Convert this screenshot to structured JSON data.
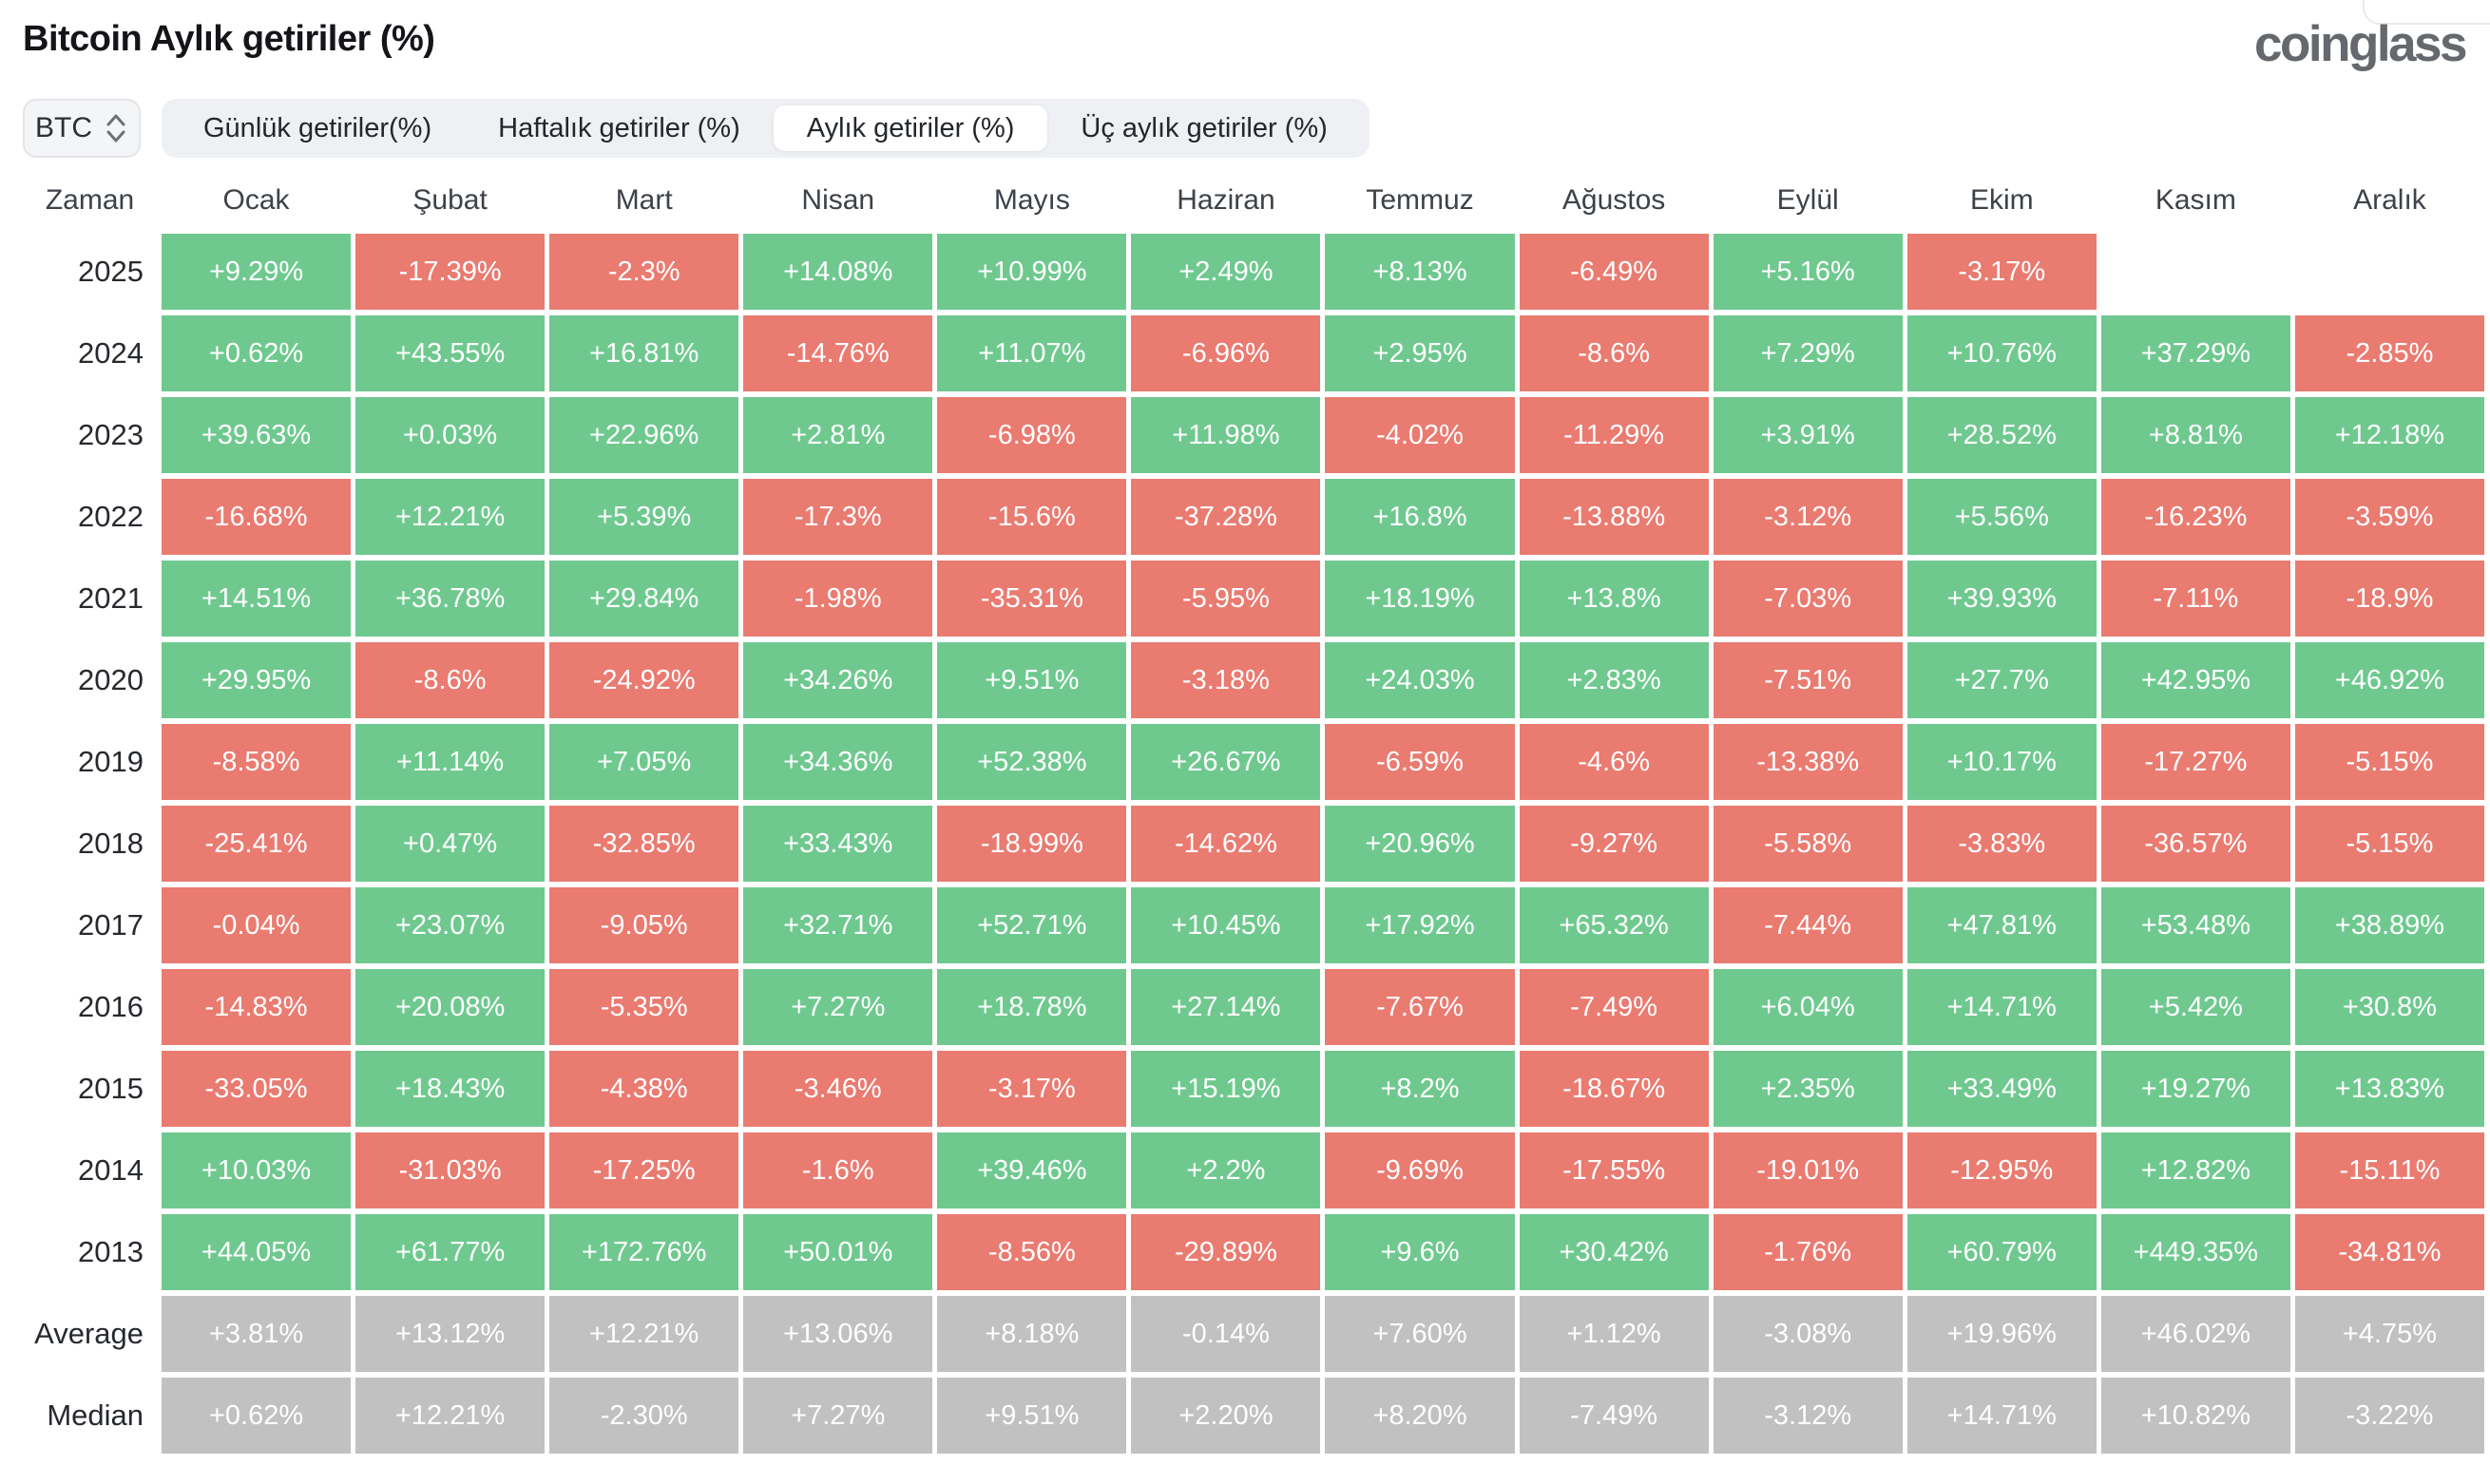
{
  "header": {
    "title": "Bitcoin Aylık getiriler (%)",
    "logo": "coinglass"
  },
  "toolbar": {
    "symbol_selector": {
      "label": "BTC"
    },
    "tabs": [
      {
        "label": "Günlük getiriler(%)",
        "active": false
      },
      {
        "label": "Haftalık getiriler (%)",
        "active": false
      },
      {
        "label": "Aylık getiriler (%)",
        "active": true
      },
      {
        "label": "Üç aylık getiriler (%)",
        "active": false
      }
    ]
  },
  "chart_data": {
    "type": "heatmap",
    "title": "Bitcoin Aylık getiriler (%)",
    "legend_position": "none",
    "grid": false,
    "columns": [
      "Zaman",
      "Ocak",
      "Şubat",
      "Mart",
      "Nisan",
      "Mayıs",
      "Haziran",
      "Temmuz",
      "Ağustos",
      "Eylül",
      "Ekim",
      "Kasım",
      "Aralık"
    ],
    "colors": {
      "positive": "#6fc98f",
      "negative": "#e97b71",
      "neutral": "#c1c1c1"
    },
    "rows": [
      {
        "label": "2025",
        "type": "year",
        "values": [
          "+9.29%",
          "-17.39%",
          "-2.3%",
          "+14.08%",
          "+10.99%",
          "+2.49%",
          "+8.13%",
          "-6.49%",
          "+5.16%",
          "-3.17%",
          null,
          null
        ]
      },
      {
        "label": "2024",
        "type": "year",
        "values": [
          "+0.62%",
          "+43.55%",
          "+16.81%",
          "-14.76%",
          "+11.07%",
          "-6.96%",
          "+2.95%",
          "-8.6%",
          "+7.29%",
          "+10.76%",
          "+37.29%",
          "-2.85%"
        ]
      },
      {
        "label": "2023",
        "type": "year",
        "values": [
          "+39.63%",
          "+0.03%",
          "+22.96%",
          "+2.81%",
          "-6.98%",
          "+11.98%",
          "-4.02%",
          "-11.29%",
          "+3.91%",
          "+28.52%",
          "+8.81%",
          "+12.18%"
        ]
      },
      {
        "label": "2022",
        "type": "year",
        "values": [
          "-16.68%",
          "+12.21%",
          "+5.39%",
          "-17.3%",
          "-15.6%",
          "-37.28%",
          "+16.8%",
          "-13.88%",
          "-3.12%",
          "+5.56%",
          "-16.23%",
          "-3.59%"
        ]
      },
      {
        "label": "2021",
        "type": "year",
        "values": [
          "+14.51%",
          "+36.78%",
          "+29.84%",
          "-1.98%",
          "-35.31%",
          "-5.95%",
          "+18.19%",
          "+13.8%",
          "-7.03%",
          "+39.93%",
          "-7.11%",
          "-18.9%"
        ]
      },
      {
        "label": "2020",
        "type": "year",
        "values": [
          "+29.95%",
          "-8.6%",
          "-24.92%",
          "+34.26%",
          "+9.51%",
          "-3.18%",
          "+24.03%",
          "+2.83%",
          "-7.51%",
          "+27.7%",
          "+42.95%",
          "+46.92%"
        ]
      },
      {
        "label": "2019",
        "type": "year",
        "values": [
          "-8.58%",
          "+11.14%",
          "+7.05%",
          "+34.36%",
          "+52.38%",
          "+26.67%",
          "-6.59%",
          "-4.6%",
          "-13.38%",
          "+10.17%",
          "-17.27%",
          "-5.15%"
        ]
      },
      {
        "label": "2018",
        "type": "year",
        "values": [
          "-25.41%",
          "+0.47%",
          "-32.85%",
          "+33.43%",
          "-18.99%",
          "-14.62%",
          "+20.96%",
          "-9.27%",
          "-5.58%",
          "-3.83%",
          "-36.57%",
          "-5.15%"
        ]
      },
      {
        "label": "2017",
        "type": "year",
        "values": [
          "-0.04%",
          "+23.07%",
          "-9.05%",
          "+32.71%",
          "+52.71%",
          "+10.45%",
          "+17.92%",
          "+65.32%",
          "-7.44%",
          "+47.81%",
          "+53.48%",
          "+38.89%"
        ]
      },
      {
        "label": "2016",
        "type": "year",
        "values": [
          "-14.83%",
          "+20.08%",
          "-5.35%",
          "+7.27%",
          "+18.78%",
          "+27.14%",
          "-7.67%",
          "-7.49%",
          "+6.04%",
          "+14.71%",
          "+5.42%",
          "+30.8%"
        ]
      },
      {
        "label": "2015",
        "type": "year",
        "values": [
          "-33.05%",
          "+18.43%",
          "-4.38%",
          "-3.46%",
          "-3.17%",
          "+15.19%",
          "+8.2%",
          "-18.67%",
          "+2.35%",
          "+33.49%",
          "+19.27%",
          "+13.83%"
        ]
      },
      {
        "label": "2014",
        "type": "year",
        "values": [
          "+10.03%",
          "-31.03%",
          "-17.25%",
          "-1.6%",
          "+39.46%",
          "+2.2%",
          "-9.69%",
          "-17.55%",
          "-19.01%",
          "-12.95%",
          "+12.82%",
          "-15.11%"
        ]
      },
      {
        "label": "2013",
        "type": "year",
        "values": [
          "+44.05%",
          "+61.77%",
          "+172.76%",
          "+50.01%",
          "-8.56%",
          "-29.89%",
          "+9.6%",
          "+30.42%",
          "-1.76%",
          "+60.79%",
          "+449.35%",
          "-34.81%"
        ]
      },
      {
        "label": "Average",
        "type": "stat",
        "values": [
          "+3.81%",
          "+13.12%",
          "+12.21%",
          "+13.06%",
          "+8.18%",
          "-0.14%",
          "+7.60%",
          "+1.12%",
          "-3.08%",
          "+19.96%",
          "+46.02%",
          "+4.75%"
        ]
      },
      {
        "label": "Median",
        "type": "stat",
        "values": [
          "+0.62%",
          "+12.21%",
          "-2.30%",
          "+7.27%",
          "+9.51%",
          "+2.20%",
          "+8.20%",
          "-7.49%",
          "-3.12%",
          "+14.71%",
          "+10.82%",
          "-3.22%"
        ]
      }
    ]
  }
}
